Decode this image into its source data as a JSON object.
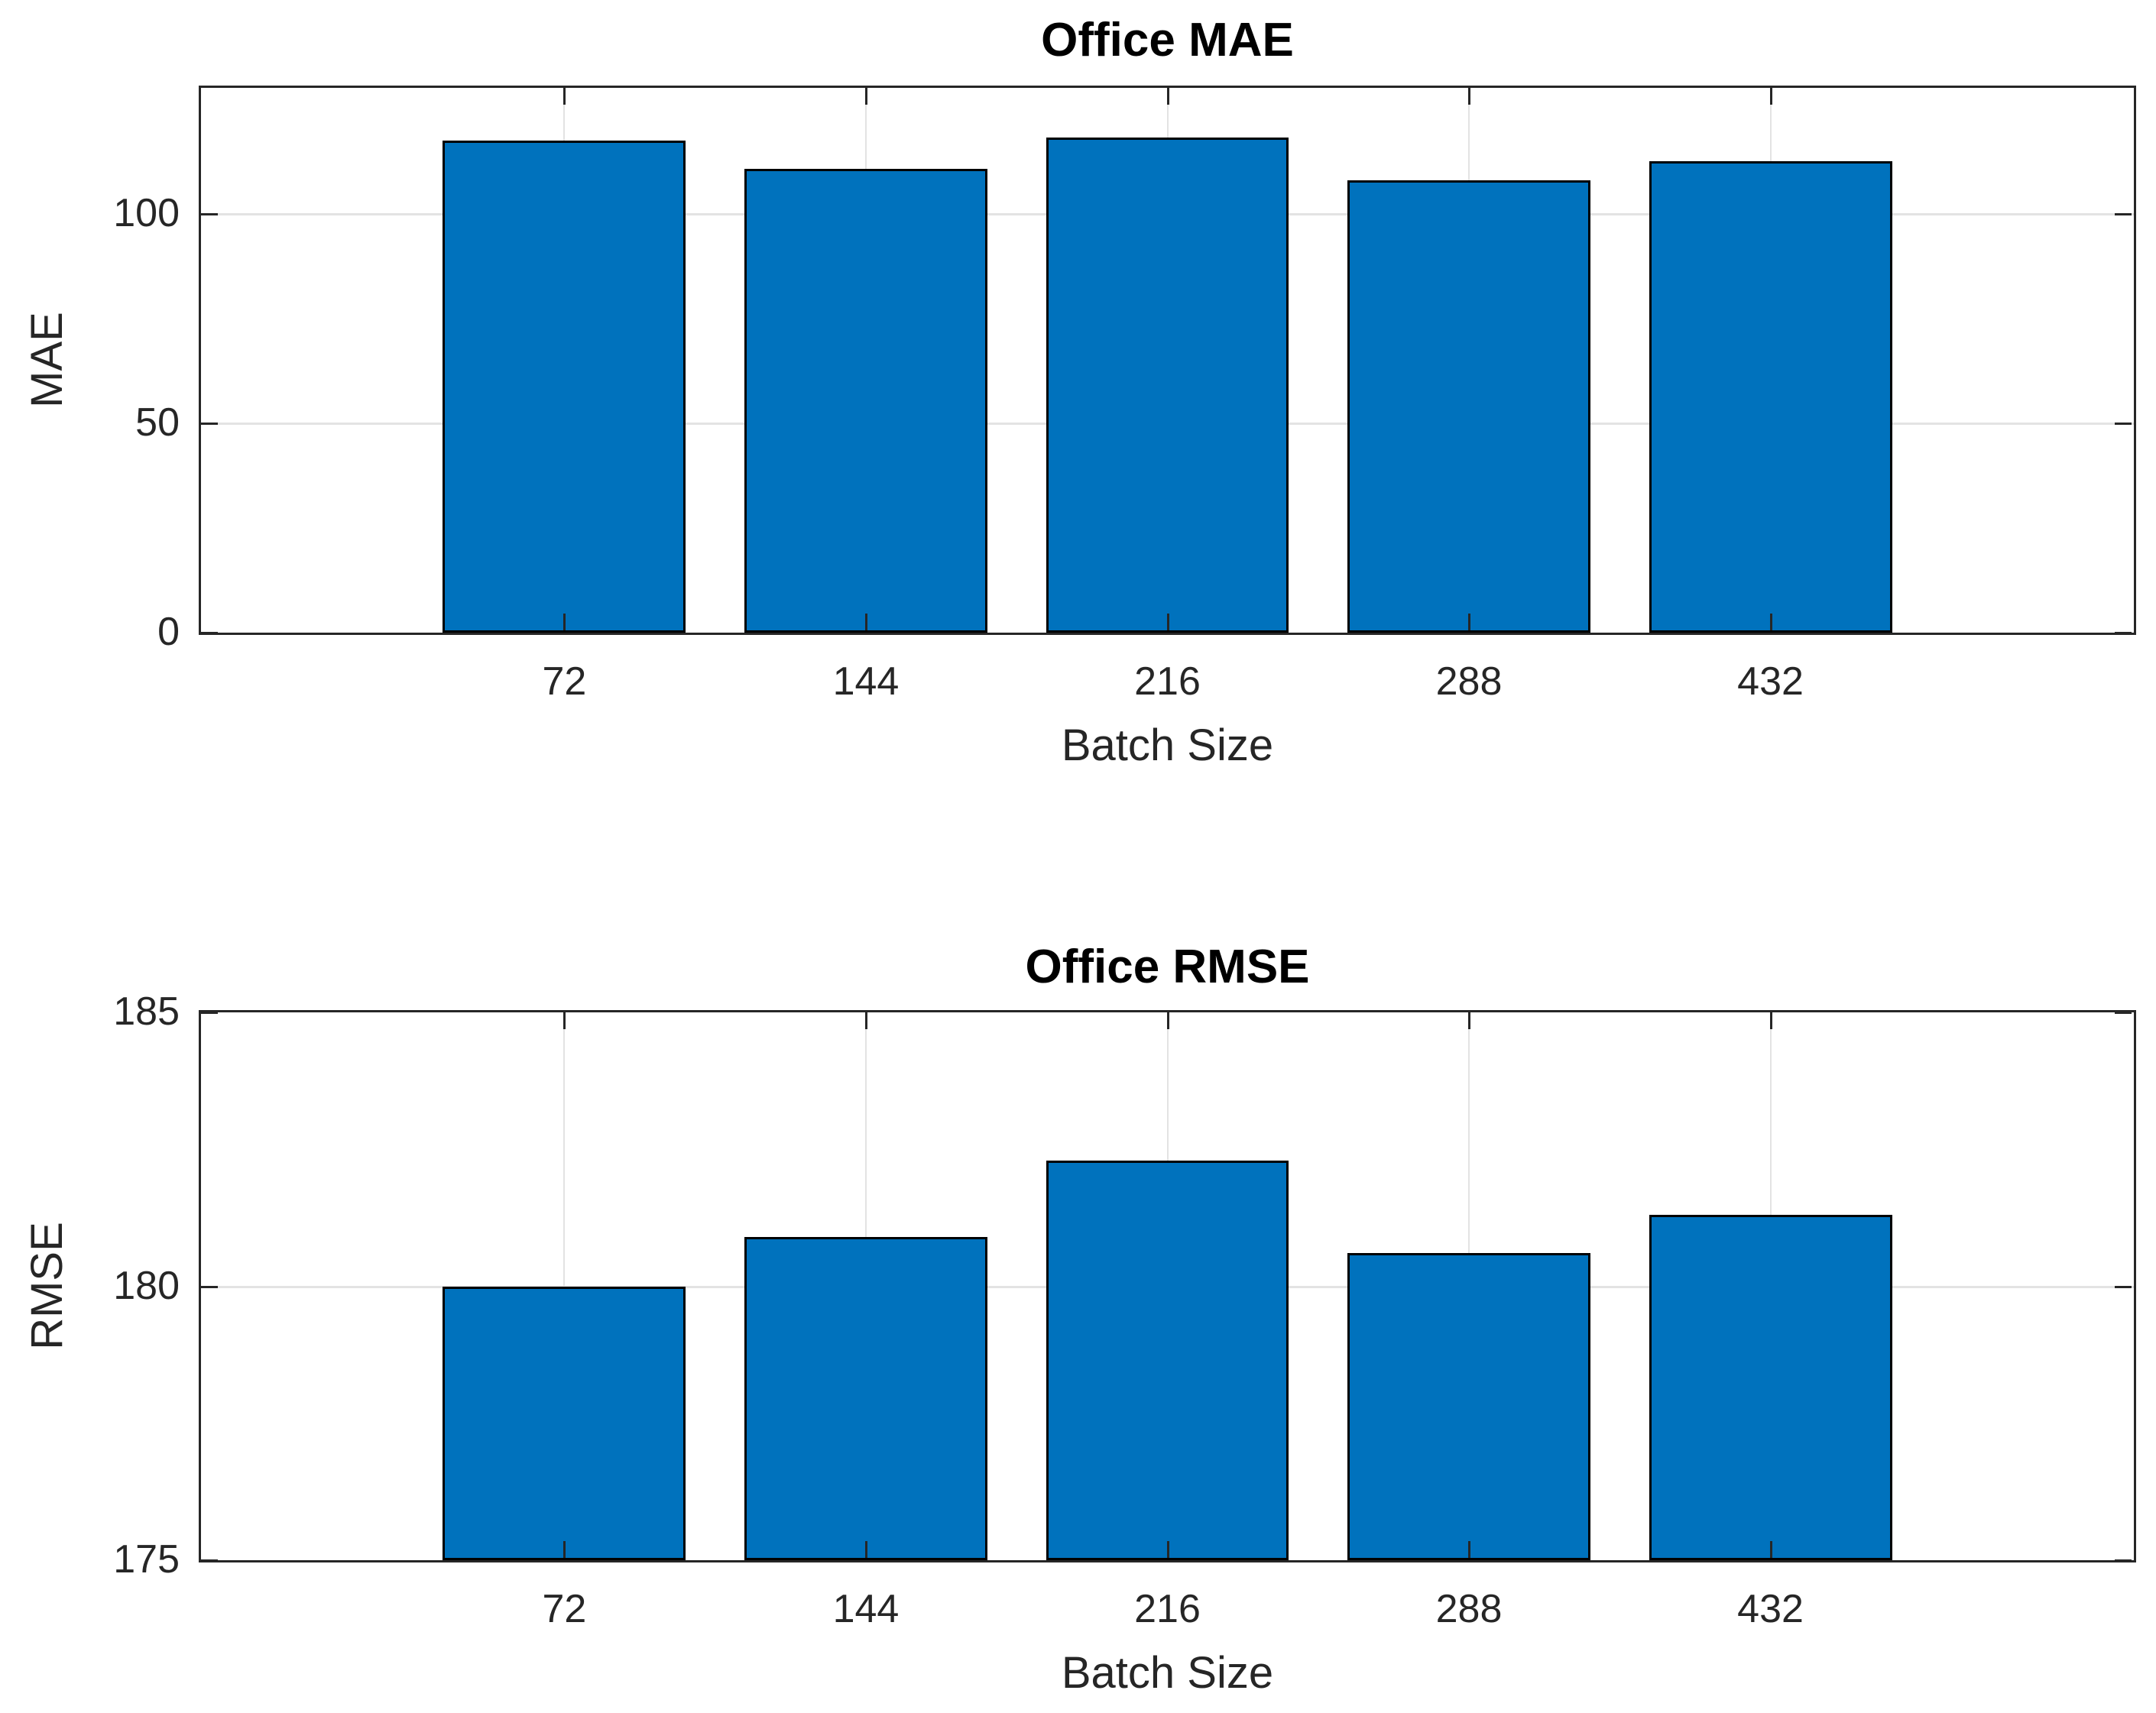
{
  "chart_data": [
    {
      "type": "bar",
      "title": "Office MAE",
      "xlabel": "Batch Size",
      "ylabel": "MAE",
      "categories": [
        "72",
        "144",
        "216",
        "288",
        "432"
      ],
      "values": [
        117.4,
        110.6,
        118.1,
        108.0,
        112.5
      ],
      "ylim": [
        0,
        130
      ],
      "yticks": [
        0,
        50,
        100
      ],
      "grid": true,
      "legend": "none",
      "bar_color": "#0072BD",
      "bar_edge_color": "#000000",
      "axis_color": "#262626",
      "grid_color": "#e3e3e3",
      "text_color": "#262626"
    },
    {
      "type": "bar",
      "title": "Office RMSE",
      "xlabel": "Batch Size",
      "ylabel": "RMSE",
      "categories": [
        "72",
        "144",
        "216",
        "288",
        "432"
      ],
      "values": [
        180.0,
        180.9,
        182.3,
        180.6,
        181.3
      ],
      "ylim": [
        175,
        185
      ],
      "yticks": [
        175,
        180,
        185
      ],
      "grid": true,
      "legend": "none",
      "bar_color": "#0072BD",
      "bar_edge_color": "#000000",
      "axis_color": "#262626",
      "grid_color": "#e3e3e3",
      "text_color": "#262626"
    }
  ]
}
